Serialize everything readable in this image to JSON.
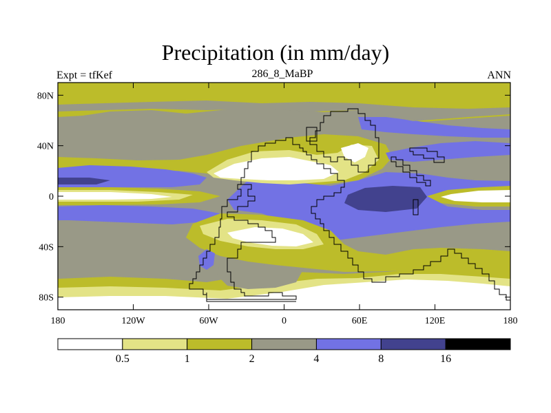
{
  "title": "Precipitation (in mm/day)",
  "experiment_label": "Expt = tfKef",
  "period_label": "286_8_MaBP",
  "season_label": "ANN",
  "x_ticks": [
    "180",
    "120W",
    "60W",
    "0",
    "60E",
    "120E",
    "180"
  ],
  "y_ticks": [
    "80N",
    "40N",
    "0",
    "40S",
    "80S"
  ],
  "colorbar": {
    "colors": [
      "#ffffff",
      "#e3e386",
      "#bcbc2a",
      "#999987",
      "#7272e4",
      "#42428e",
      "#000000"
    ],
    "labels": [
      "0.5",
      "1",
      "2",
      "4",
      "8",
      "16"
    ]
  },
  "legend_colors": {
    "very_dry": "#ffffff",
    "dry": "#e3e386",
    "low": "#bcbc2a",
    "mid": "#999987",
    "wet": "#7272e4",
    "very_wet": "#42428e",
    "extreme": "#000000"
  }
}
